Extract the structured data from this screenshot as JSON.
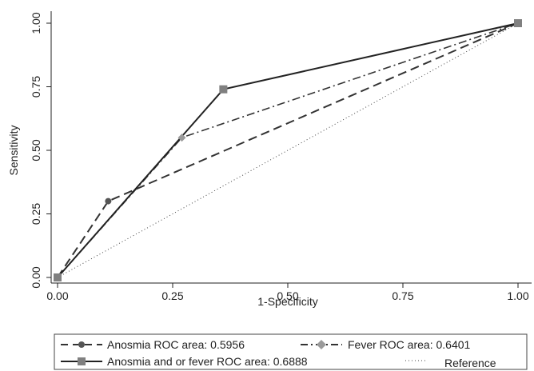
{
  "chart_data": {
    "type": "line",
    "title": "",
    "xlabel": "1-Specificity",
    "ylabel": "Sensitivity",
    "xlim": [
      0,
      1
    ],
    "ylim": [
      0,
      1
    ],
    "x_ticks": [
      "0.00",
      "0.25",
      "0.50",
      "0.75",
      "1.00"
    ],
    "y_ticks": [
      "0.00",
      "0.25",
      "0.50",
      "0.75",
      "1.00"
    ],
    "grid": "none",
    "legend_position": "bottom",
    "series": [
      {
        "name": "Anosmia ROC area: 0.5956",
        "marker": "circle",
        "line_style": "dashed",
        "color": "#333333",
        "marker_color": "#555555",
        "points": [
          [
            0,
            0
          ],
          [
            0.11,
            0.3
          ],
          [
            1,
            1
          ]
        ]
      },
      {
        "name": "Fever ROC area: 0.6401",
        "marker": "diamond",
        "line_style": "dash-dot",
        "color": "#333333",
        "marker_color": "#9a9a9a",
        "points": [
          [
            0,
            0
          ],
          [
            0.27,
            0.55
          ],
          [
            1,
            1
          ]
        ]
      },
      {
        "name": "Anosmia and or fever ROC area: 0.6888",
        "marker": "square",
        "line_style": "solid",
        "color": "#222222",
        "marker_color": "#808080",
        "points": [
          [
            0,
            0
          ],
          [
            0.36,
            0.74
          ],
          [
            1,
            1
          ]
        ]
      },
      {
        "name": "Reference",
        "marker": "none",
        "line_style": "dotted",
        "color": "#444444",
        "points": [
          [
            0,
            0
          ],
          [
            1,
            1
          ]
        ]
      }
    ]
  }
}
